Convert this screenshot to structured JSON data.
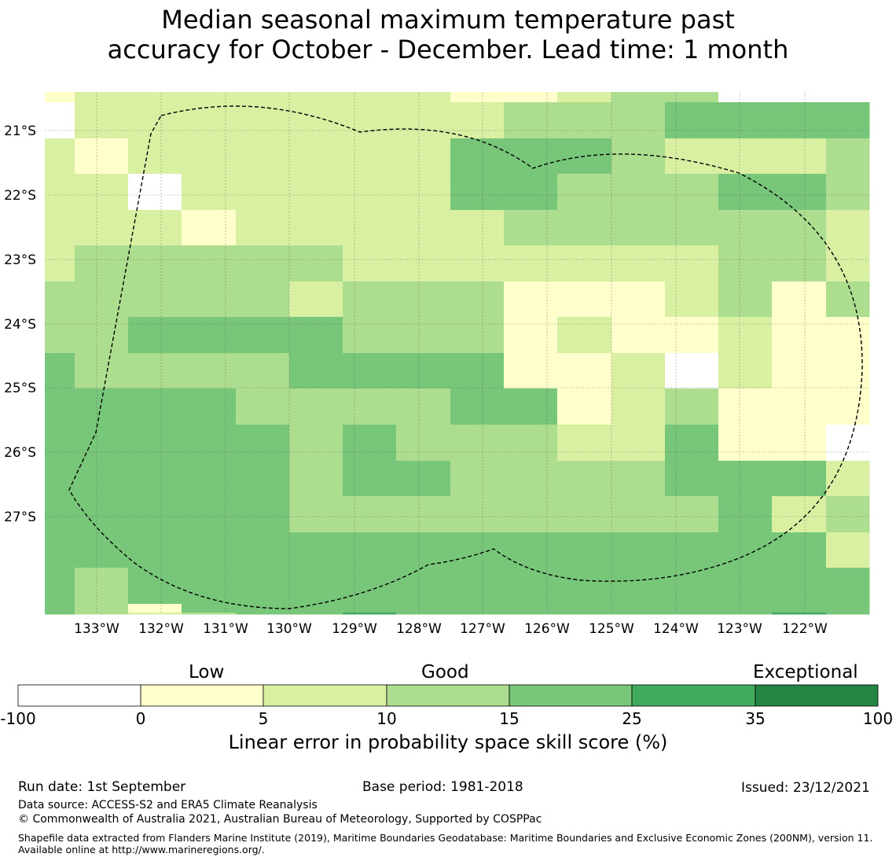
{
  "title": {
    "line1": "Median seasonal maximum temperature past",
    "line2": "accuracy for October - December. Lead time: 1 month"
  },
  "map": {
    "lat_labels": [
      "21°S",
      "22°S",
      "23°S",
      "24°S",
      "25°S",
      "26°S",
      "27°S"
    ],
    "lon_labels": [
      "133°W",
      "132°W",
      "131°W",
      "130°W",
      "129°W",
      "128°W",
      "127°W",
      "126°W",
      "125°W",
      "124°W",
      "123°W",
      "122°W"
    ],
    "legend_colors": [
      "#ffffff",
      "#ffffcc",
      "#d9f0a3",
      "#addd8e",
      "#78c679",
      "#41ab5d",
      "#238443"
    ],
    "grid_rows": [
      "1222222211233000",
      "0222222223334444",
      "2122222244432223",
      "2202222244333443",
      "2221222223333332",
      "2333332222222332",
      "3333323331112313",
      "3344443331211211",
      "4333344441120211",
      "4444333344123111",
      "4444434333224110",
      "4444434433334442",
      "4444433333333423",
      "4444444444444442",
      "4344444444444444",
      "4314444444444444",
      "4323445444444454"
    ]
  },
  "colorbar": {
    "categories": [
      "Low",
      "Good",
      "Exceptional"
    ],
    "ticks": [
      "-100",
      "0",
      "5",
      "10",
      "15",
      "25",
      "35",
      "100"
    ],
    "label": "Linear error in probability space skill score (%)"
  },
  "footer": {
    "run_date": "Run date: 1st September",
    "base_period": "Base period: 1981-2018",
    "issued": "Issued: 23/12/2021",
    "data_source": "Data source: ACCESS-S2 and ERA5 Climate Reanalysis",
    "copyright": "© Commonwealth of Australia 2021, Australian Bureau of Meteorology, Supported by COSPPac",
    "shapefile": "Shapefile data extracted from Flanders Marine Institute (2019), Maritime Boundaries Geodatabase: Maritime Boundaries and Exclusive Economic Zones (200NM), version 11. Available online at http://www.marineregions.org/."
  }
}
